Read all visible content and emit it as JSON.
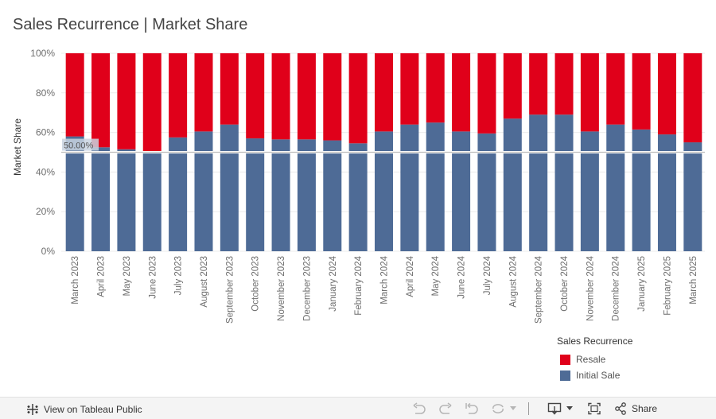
{
  "title": "Sales Recurrence | Market Share",
  "chart_data": {
    "type": "bar",
    "stacked": true,
    "normalized": true,
    "title": "Sales Recurrence | Market Share",
    "xlabel": "",
    "ylabel": "Market Share",
    "ylim": [
      0,
      1
    ],
    "y_ticks": [
      "0%",
      "20%",
      "40%",
      "60%",
      "80%",
      "100%"
    ],
    "y_tick_values": [
      0,
      0.2,
      0.4,
      0.6,
      0.8,
      1.0
    ],
    "grid": true,
    "categories": [
      "March 2023",
      "April 2023",
      "May 2023",
      "June 2023",
      "July 2023",
      "August 2023",
      "September 2023",
      "October 2023",
      "November 2023",
      "December 2023",
      "January 2024",
      "February 2024",
      "March 2024",
      "April 2024",
      "May 2024",
      "June 2024",
      "July 2024",
      "August 2024",
      "September 2024",
      "October 2024",
      "November 2024",
      "December 2024",
      "January 2025",
      "February 2025",
      "March 2025"
    ],
    "series": [
      {
        "name": "Initial Sale",
        "color": "#4e6b96",
        "values": [
          0.58,
          0.525,
          0.515,
          0.505,
          0.575,
          0.605,
          0.64,
          0.57,
          0.565,
          0.565,
          0.56,
          0.545,
          0.605,
          0.64,
          0.65,
          0.605,
          0.595,
          0.67,
          0.69,
          0.69,
          0.605,
          0.64,
          0.615,
          0.59,
          0.55
        ]
      },
      {
        "name": "Resale",
        "color": "#e0001a",
        "values": [
          0.42,
          0.475,
          0.485,
          0.495,
          0.425,
          0.395,
          0.36,
          0.43,
          0.435,
          0.435,
          0.44,
          0.455,
          0.395,
          0.36,
          0.35,
          0.395,
          0.405,
          0.33,
          0.31,
          0.31,
          0.395,
          0.36,
          0.385,
          0.41,
          0.45
        ]
      }
    ],
    "reference_line": {
      "value": 0.5,
      "label": "50.00%"
    },
    "legend": {
      "title": "Sales Recurrence",
      "placement": "bottom-right",
      "items": [
        {
          "label": "Resale",
          "color": "#e0001a"
        },
        {
          "label": "Initial Sale",
          "color": "#4e6b96"
        }
      ]
    }
  },
  "footer": {
    "view_link": "View on Tableau Public",
    "share_label": "Share",
    "icons": [
      "undo-icon",
      "redo-icon",
      "revert-icon",
      "refresh-icon",
      "download-icon",
      "fullscreen-icon",
      "share-icon"
    ]
  }
}
